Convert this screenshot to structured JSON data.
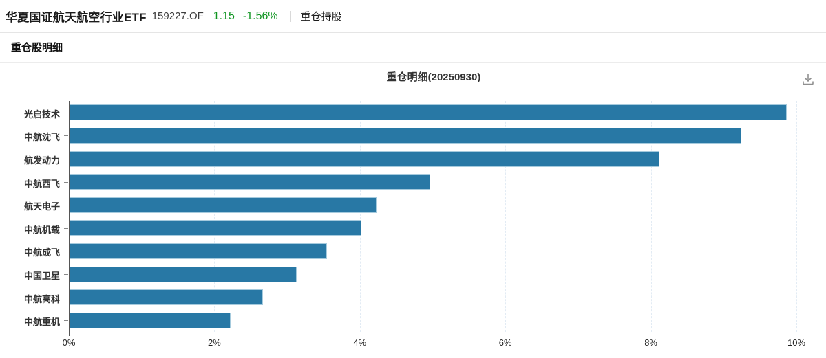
{
  "header": {
    "fund_name": "华夏国证航天航空行业ETF",
    "fund_code": "159227.OF",
    "nav": "1.15",
    "change_pct": "-1.56%",
    "value_color": "#0e9420",
    "tab_label": "重仓持股"
  },
  "section": {
    "title": "重仓股明细"
  },
  "chart_data": {
    "type": "bar",
    "orientation": "horizontal",
    "title": "重仓明细(20250930)",
    "categories": [
      "光启技术",
      "中航沈飞",
      "航发动力",
      "中航西飞",
      "航天电子",
      "中航机载",
      "中航成飞",
      "中国卫星",
      "中航高科",
      "中航重机"
    ],
    "values": [
      9.87,
      9.24,
      8.12,
      4.97,
      4.23,
      4.02,
      3.55,
      3.13,
      2.67,
      2.22
    ],
    "unit": "%",
    "xlim": [
      0,
      10
    ],
    "x_tick_values": [
      0,
      2,
      4,
      6,
      8,
      10
    ],
    "x_tick_labels": [
      "0%",
      "2%",
      "4%",
      "6%",
      "8%",
      "10%"
    ],
    "grid": true,
    "legend": false,
    "bar_color": "#2878a5",
    "bar_border_color": "#a5cadd",
    "axis_line_color": "#555555"
  },
  "icons": {
    "download": "download-icon"
  }
}
